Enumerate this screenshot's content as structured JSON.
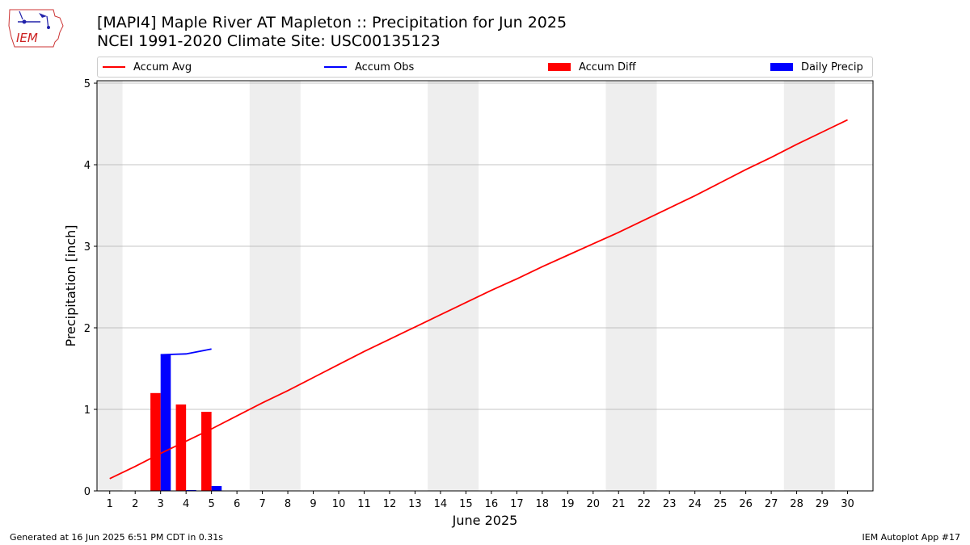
{
  "logo": {
    "text": "IEM"
  },
  "header": {
    "title_line1": "[MAPI4] Maple River  AT Mapleton :: Precipitation for Jun 2025",
    "title_line2": "NCEI 1991-2020 Climate Site: USC00135123"
  },
  "legend": [
    {
      "label": "Accum Avg",
      "kind": "line",
      "color": "#ff0000"
    },
    {
      "label": "Accum Obs",
      "kind": "line",
      "color": "#0000ff"
    },
    {
      "label": "Accum Diff",
      "kind": "patch",
      "color": "#ff0000"
    },
    {
      "label": "Daily Precip",
      "kind": "patch",
      "color": "#0000ff"
    }
  ],
  "chart_data": {
    "type": "bar",
    "xlabel": "June 2025",
    "ylabel": "Precipitation [inch]",
    "xlim": [
      0.5,
      31
    ],
    "ylim": [
      0,
      5.03
    ],
    "yticks": [
      0,
      1,
      2,
      3,
      4,
      5
    ],
    "days": [
      1,
      2,
      3,
      4,
      5,
      6,
      7,
      8,
      9,
      10,
      11,
      12,
      13,
      14,
      15,
      16,
      17,
      18,
      19,
      20,
      21,
      22,
      23,
      24,
      25,
      26,
      27,
      28,
      29,
      30
    ],
    "weekend_shading": [
      [
        0.5,
        1.5
      ],
      [
        6.5,
        8.5
      ],
      [
        13.5,
        15.5
      ],
      [
        20.5,
        22.5
      ],
      [
        27.5,
        29.5
      ]
    ],
    "grid": "horizontal",
    "series": [
      {
        "name": "Accum Avg",
        "type": "line",
        "color": "#ff0000",
        "x": [
          1,
          2,
          3,
          4,
          5,
          6,
          7,
          8,
          9,
          10,
          11,
          12,
          13,
          14,
          15,
          16,
          17,
          18,
          19,
          20,
          21,
          22,
          23,
          24,
          25,
          26,
          27,
          28,
          29,
          30
        ],
        "values": [
          0.15,
          0.3,
          0.46,
          0.61,
          0.76,
          0.92,
          1.08,
          1.23,
          1.39,
          1.55,
          1.71,
          1.86,
          2.01,
          2.16,
          2.31,
          2.46,
          2.6,
          2.75,
          2.89,
          3.03,
          3.17,
          3.32,
          3.47,
          3.62,
          3.78,
          3.94,
          4.09,
          4.25,
          4.4,
          4.55
        ]
      },
      {
        "name": "Accum Obs",
        "type": "line",
        "color": "#0000ff",
        "x": [
          3,
          4,
          5
        ],
        "values": [
          1.67,
          1.68,
          1.74
        ]
      },
      {
        "name": "Accum Diff",
        "type": "bar",
        "color": "#ff0000",
        "x": [
          3,
          4,
          5
        ],
        "values": [
          1.2,
          1.06,
          0.97
        ]
      },
      {
        "name": "Daily Precip",
        "type": "bar",
        "color": "#0000ff",
        "x": [
          3,
          4,
          5
        ],
        "values": [
          1.67,
          0.01,
          0.06
        ]
      }
    ]
  },
  "footer": {
    "left": "Generated at 16 Jun 2025 6:51 PM CDT in 0.31s",
    "right": "IEM Autoplot App #17"
  }
}
